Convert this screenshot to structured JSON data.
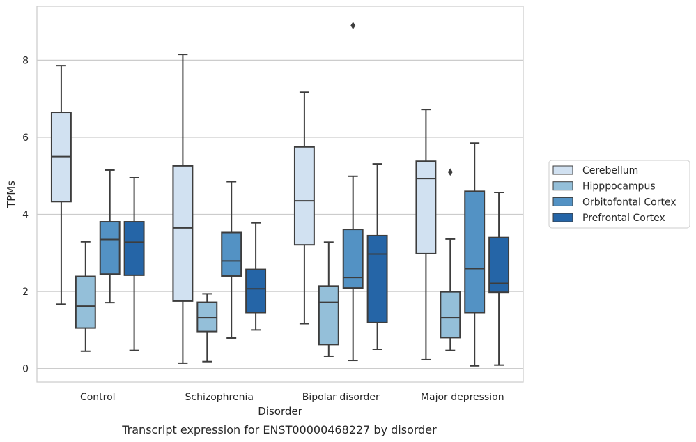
{
  "caption": "Transcript expression for ENST00000468227 by disorder",
  "chart_data": {
    "type": "boxplot",
    "title": "",
    "xlabel": "Disorder",
    "ylabel": "TPMs",
    "ylim": [
      -0.35,
      9.4
    ],
    "yticks": [
      0,
      2,
      4,
      6,
      8
    ],
    "grid": "horizontal",
    "legend_position": "right",
    "categories": [
      "Control",
      "Schizophrenia",
      "Bipolar disorder",
      "Major depression"
    ],
    "series": [
      {
        "name": "Cerebellum",
        "color": "#d1e1f1",
        "boxes": [
          {
            "whislo": 1.67,
            "q1": 4.33,
            "med": 5.5,
            "q3": 6.65,
            "whishi": 7.86,
            "fliers": []
          },
          {
            "whislo": 0.14,
            "q1": 1.75,
            "med": 3.65,
            "q3": 5.26,
            "whishi": 8.15,
            "fliers": []
          },
          {
            "whislo": 1.16,
            "q1": 3.21,
            "med": 4.35,
            "q3": 5.75,
            "whishi": 7.17,
            "fliers": []
          },
          {
            "whislo": 0.23,
            "q1": 2.98,
            "med": 4.93,
            "q3": 5.38,
            "whishi": 6.72,
            "fliers": []
          }
        ]
      },
      {
        "name": "Hipppocampus",
        "color": "#94bfd9",
        "boxes": [
          {
            "whislo": 0.45,
            "q1": 1.05,
            "med": 1.62,
            "q3": 2.39,
            "whishi": 3.29,
            "fliers": []
          },
          {
            "whislo": 0.18,
            "q1": 0.96,
            "med": 1.33,
            "q3": 1.72,
            "whishi": 1.94,
            "fliers": []
          },
          {
            "whislo": 0.32,
            "q1": 0.62,
            "med": 1.72,
            "q3": 2.14,
            "whishi": 3.28,
            "fliers": []
          },
          {
            "whislo": 0.47,
            "q1": 0.8,
            "med": 1.33,
            "q3": 1.99,
            "whishi": 3.36,
            "fliers": [
              5.1
            ]
          }
        ]
      },
      {
        "name": "Orbitofontal Cortex",
        "color": "#5392c4",
        "boxes": [
          {
            "whislo": 1.71,
            "q1": 2.45,
            "med": 3.35,
            "q3": 3.81,
            "whishi": 5.15,
            "fliers": []
          },
          {
            "whislo": 0.79,
            "q1": 2.4,
            "med": 2.79,
            "q3": 3.53,
            "whishi": 4.85,
            "fliers": []
          },
          {
            "whislo": 0.21,
            "q1": 2.09,
            "med": 2.36,
            "q3": 3.61,
            "whishi": 4.99,
            "fliers": [
              8.9
            ]
          },
          {
            "whislo": 0.07,
            "q1": 1.45,
            "med": 2.59,
            "q3": 4.6,
            "whishi": 5.85,
            "fliers": []
          }
        ]
      },
      {
        "name": "Prefrontal Cortex",
        "color": "#2565a7",
        "boxes": [
          {
            "whislo": 0.47,
            "q1": 2.42,
            "med": 3.28,
            "q3": 3.81,
            "whishi": 4.95,
            "fliers": []
          },
          {
            "whislo": 1.0,
            "q1": 1.45,
            "med": 2.07,
            "q3": 2.57,
            "whishi": 3.78,
            "fliers": []
          },
          {
            "whislo": 0.5,
            "q1": 1.19,
            "med": 2.97,
            "q3": 3.45,
            "whishi": 5.31,
            "fliers": []
          },
          {
            "whislo": 0.09,
            "q1": 1.98,
            "med": 2.21,
            "q3": 3.4,
            "whishi": 4.57,
            "fliers": []
          }
        ]
      }
    ]
  }
}
